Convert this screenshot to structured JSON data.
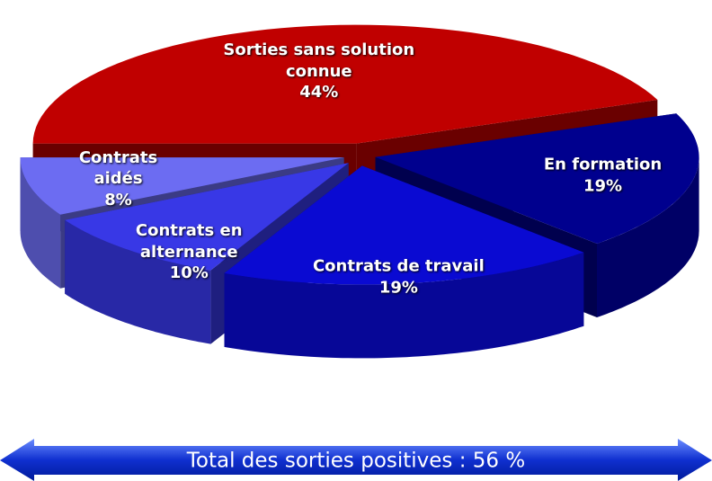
{
  "chart_data": {
    "type": "pie3d",
    "categories": [
      "Sorties sans solution connue",
      "En formation",
      "Contrats de travail",
      "Contrats en alternance",
      "Contrats aidés"
    ],
    "values": [
      44,
      19,
      19,
      10,
      8
    ],
    "value_labels": [
      "44%",
      "19%",
      "19%",
      "10%",
      "8%"
    ],
    "colors": [
      "#c00000",
      "#00008e",
      "#0a0ad2",
      "#3838e6",
      "#6c6cf2"
    ],
    "annotation": "Total des sorties positives : 56 %"
  }
}
